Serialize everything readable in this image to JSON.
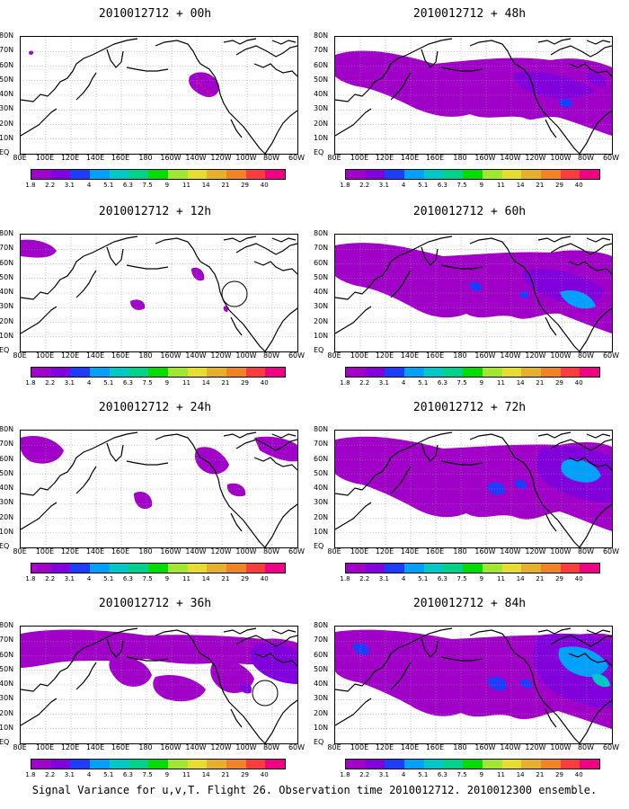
{
  "panels": [
    {
      "title": "2010012712 + 00h"
    },
    {
      "title": "2010012712 + 48h"
    },
    {
      "title": "2010012712 + 12h"
    },
    {
      "title": "2010012712 + 60h"
    },
    {
      "title": "2010012712 + 24h"
    },
    {
      "title": "2010012712 + 72h"
    },
    {
      "title": "2010012712 + 36h"
    },
    {
      "title": "2010012712 + 84h"
    }
  ],
  "lat_labels": [
    "80N",
    "70N",
    "60N",
    "50N",
    "40N",
    "30N",
    "20N",
    "10N",
    "EQ"
  ],
  "lon_labels": [
    "80E",
    "100E",
    "120E",
    "140E",
    "160E",
    "180",
    "160W",
    "140W",
    "120W",
    "100W",
    "80W",
    "60W"
  ],
  "colorbar": {
    "labels": [
      "1.8",
      "2.2",
      "3.1",
      "4",
      "5.1",
      "6.3",
      "7.5",
      "9",
      "11",
      "14",
      "21",
      "29",
      "40"
    ],
    "colors": [
      "#a000c8",
      "#8200dc",
      "#1e3cff",
      "#00a0ff",
      "#00c8c8",
      "#00d28c",
      "#00dc00",
      "#a0e632",
      "#e6dc32",
      "#e6af2d",
      "#f08228",
      "#fa3c3c",
      "#f00082"
    ]
  },
  "caption": "Signal Variance for u,v,T. Flight 26. Observation time 2010012712. 2010012300 ensemble.",
  "chart_data": {
    "type": "heatmap",
    "variable": "Signal Variance for u,v,T",
    "flight": 26,
    "observation_time": "2010012712",
    "ensemble": "2010012300",
    "forecast_leads_hours": [
      0,
      48,
      12,
      60,
      24,
      72,
      36,
      84
    ],
    "lat_range": [
      "EQ",
      "80N"
    ],
    "lon_range": [
      "80E",
      "60W"
    ],
    "levels": [
      1.8,
      2.2,
      3.1,
      4,
      5.1,
      6.3,
      7.5,
      9,
      11,
      14,
      21,
      29,
      40
    ],
    "grid": true
  }
}
